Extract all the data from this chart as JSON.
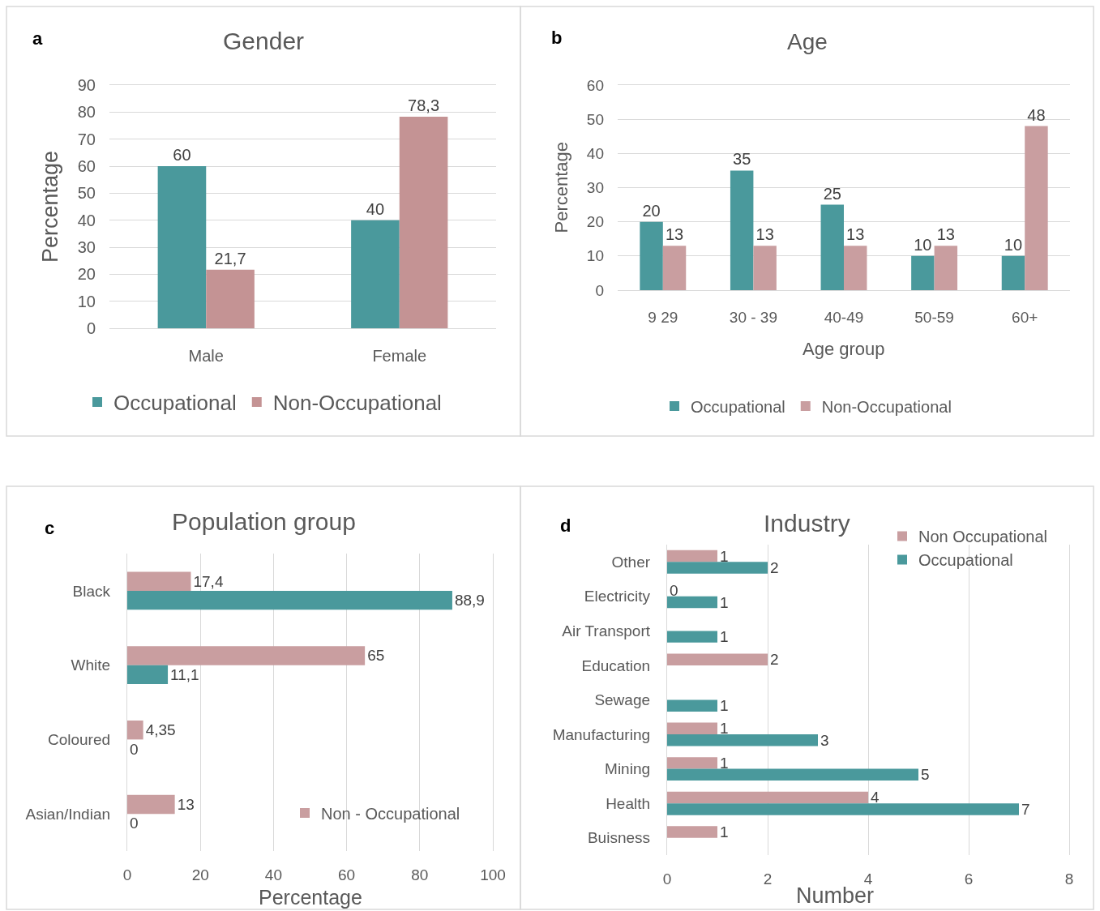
{
  "chart_data": [
    {
      "type": "bar",
      "title": "Gender",
      "categories": [
        "Male",
        "Female"
      ],
      "series": [
        {
          "name": "Occupational",
          "color": "#4a999c",
          "values": [
            60,
            40
          ],
          "value_labels": [
            "60",
            "40"
          ]
        },
        {
          "name": "Non-Occupational",
          "color": "#c49394",
          "values": [
            21.7,
            78.3
          ],
          "value_labels": [
            "21,7",
            "78,3"
          ]
        }
      ],
      "ylabel": "Percentage",
      "ylim": [
        0,
        90
      ],
      "yticks": [
        0,
        10,
        20,
        30,
        40,
        50,
        60,
        70,
        80,
        90
      ],
      "grid": "y",
      "legend": "bottom",
      "annotations": [
        "a"
      ]
    },
    {
      "type": "bar",
      "title": "Age",
      "categories": [
        "9 29",
        "30 - 39",
        "40-49",
        "50-59",
        "60+"
      ],
      "series": [
        {
          "name": "Occupational",
          "color": "#4a999c",
          "values": [
            20,
            35,
            25,
            10,
            10
          ]
        },
        {
          "name": "Non-Occupational",
          "color": "#c99ea0",
          "values": [
            13,
            13,
            13,
            13,
            48
          ]
        }
      ],
      "xlabel": "Age group",
      "ylabel": "Percentage",
      "ylim": [
        0,
        60
      ],
      "yticks": [
        0,
        10,
        20,
        30,
        40,
        50,
        60
      ],
      "grid": "y",
      "legend": "bottom",
      "data_labels": true,
      "annotations": [
        "b"
      ]
    },
    {
      "type": "bar",
      "orientation": "horizontal",
      "title": "Population group",
      "categories": [
        "Black",
        "White",
        "Coloured",
        "Asian/Indian"
      ],
      "series": [
        {
          "name": "Non - Occupational",
          "color": "#c99ea0",
          "values": [
            17.4,
            65,
            4.35,
            13
          ],
          "value_labels": [
            "17,4",
            "65",
            "4,35",
            "13"
          ]
        },
        {
          "color": "#4a999c",
          "values": [
            88.9,
            11.1,
            0,
            0
          ],
          "value_labels": [
            "88,9",
            "11,1",
            "0",
            "0"
          ]
        }
      ],
      "xlabel": "Percentage",
      "xlim": [
        0,
        100
      ],
      "xticks": [
        0,
        20,
        40,
        60,
        80,
        100
      ],
      "grid": "x",
      "legend": "bottom right",
      "annotations": [
        "c"
      ]
    },
    {
      "type": "bar",
      "orientation": "horizontal",
      "title": "Industry",
      "categories": [
        "Other",
        "Electricity",
        "Air Transport",
        "Education",
        "Sewage",
        "Manufacturing",
        "Mining",
        "Health",
        "Buisness"
      ],
      "series": [
        {
          "name": "Non Occupational",
          "color": "#c99ea0",
          "values": [
            1,
            0,
            null,
            2,
            null,
            1,
            1,
            4,
            1
          ]
        },
        {
          "name": "Occupational",
          "color": "#4a999c",
          "values": [
            2,
            1,
            1,
            null,
            1,
            3,
            5,
            7,
            null
          ]
        }
      ],
      "xlabel": "Number",
      "xlim": [
        0,
        8
      ],
      "xticks": [
        0,
        2,
        4,
        6,
        8
      ],
      "grid": "x",
      "legend": "top right",
      "data_labels": true,
      "annotations": [
        "d"
      ]
    }
  ]
}
